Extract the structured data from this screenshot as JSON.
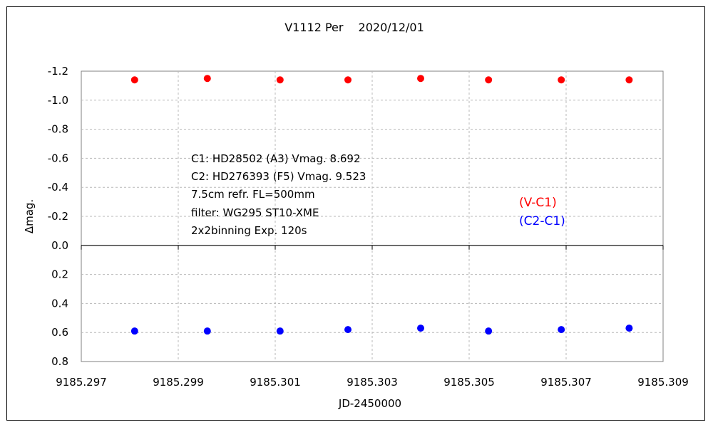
{
  "chart_data": {
    "type": "scatter",
    "title": "V1112 Per　 2020/12/01",
    "xlabel": "JD-2450000",
    "ylabel": "Δmag.",
    "xlim": [
      9185.297,
      9185.309
    ],
    "ylim": [
      -1.2,
      0.8
    ],
    "y_inverted": true,
    "grid": true,
    "x_ticks": [
      9185.297,
      9185.299,
      9185.301,
      9185.303,
      9185.305,
      9185.307,
      9185.309
    ],
    "x_tick_labels": [
      "9185.297",
      "9185.299",
      "9185.301",
      "9185.303",
      "9185.305",
      "9185.307",
      "9185.309"
    ],
    "y_ticks": [
      -1.2,
      -1.0,
      -0.8,
      -0.6,
      -0.4,
      -0.2,
      0.0,
      0.2,
      0.4,
      0.6,
      0.8
    ],
    "y_tick_labels": [
      "-1.2",
      "-1.0",
      "-0.8",
      "-0.6",
      "-0.4",
      "-0.2",
      "0.0",
      "0.2",
      "0.4",
      "0.6",
      "0.8"
    ],
    "annotations": [
      "C1: HD28502 (A3) Vmag. 8.692",
      "C2: HD276393 (F5) Vmag. 9.523",
      "7.5cm refr. FL=500mm",
      "filter: WG295  ST10-XME",
      "2x2binning  Exp. 120s"
    ],
    "legend_position": "right",
    "series": [
      {
        "name": "(V-C1)",
        "color": "#ff0000",
        "x": [
          9185.2981,
          9185.2996,
          9185.3011,
          9185.3025,
          9185.304,
          9185.3054,
          9185.3069,
          9185.3083
        ],
        "y": [
          -1.14,
          -1.15,
          -1.14,
          -1.14,
          -1.15,
          -1.14,
          -1.14,
          -1.14
        ]
      },
      {
        "name": "(C2-C1)",
        "color": "#0000ff",
        "x": [
          9185.2981,
          9185.2996,
          9185.3011,
          9185.3025,
          9185.304,
          9185.3054,
          9185.3069,
          9185.3083
        ],
        "y": [
          0.59,
          0.59,
          0.59,
          0.58,
          0.57,
          0.59,
          0.58,
          0.57
        ]
      }
    ]
  }
}
